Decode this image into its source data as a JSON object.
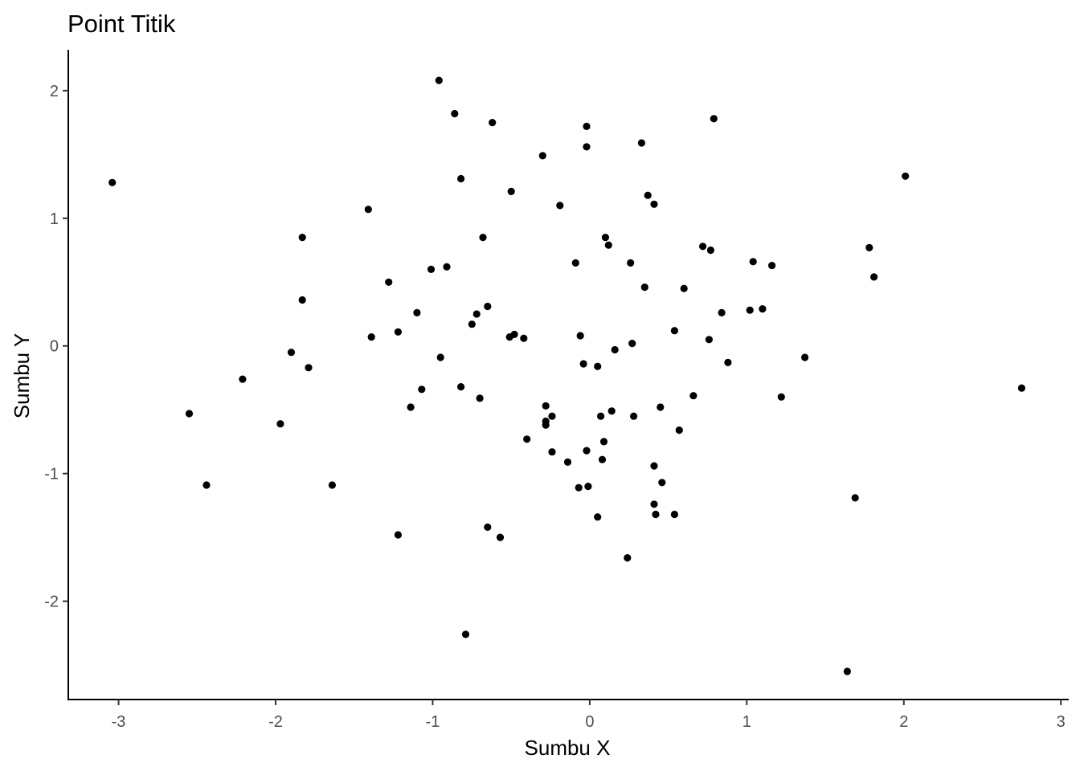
{
  "chart_data": {
    "type": "scatter",
    "title": "Point Titik",
    "xlabel": "Sumbu X",
    "ylabel": "Sumbu Y",
    "xlim": [
      -3.32,
      3.05
    ],
    "ylim": [
      -2.77,
      2.32
    ],
    "x_ticks": [
      -3,
      -2,
      -1,
      0,
      1,
      2,
      3
    ],
    "y_ticks": [
      -2,
      -1,
      0,
      1,
      2
    ],
    "x_tick_labels": [
      "-3",
      "-2",
      "-1",
      "0",
      "1",
      "2",
      "3"
    ],
    "y_tick_labels": [
      "-2",
      "-1",
      "0",
      "1",
      "2"
    ],
    "grid": false,
    "legend": "none",
    "point_color": "#000000",
    "points": [
      {
        "x": -3.04,
        "y": 1.28
      },
      {
        "x": -2.55,
        "y": -0.53
      },
      {
        "x": -2.44,
        "y": -1.09
      },
      {
        "x": -2.21,
        "y": -0.26
      },
      {
        "x": -1.97,
        "y": -0.61
      },
      {
        "x": -1.9,
        "y": -0.05
      },
      {
        "x": -1.83,
        "y": 0.85
      },
      {
        "x": -1.83,
        "y": 0.36
      },
      {
        "x": -1.79,
        "y": -0.17
      },
      {
        "x": -1.64,
        "y": -1.09
      },
      {
        "x": -1.41,
        "y": 1.07
      },
      {
        "x": -1.39,
        "y": 0.07
      },
      {
        "x": -1.28,
        "y": 0.5
      },
      {
        "x": -1.22,
        "y": 0.11
      },
      {
        "x": -1.22,
        "y": -1.48
      },
      {
        "x": -1.14,
        "y": -0.48
      },
      {
        "x": -1.1,
        "y": 0.26
      },
      {
        "x": -1.07,
        "y": -0.34
      },
      {
        "x": -1.01,
        "y": 0.6
      },
      {
        "x": -0.96,
        "y": 2.08
      },
      {
        "x": -0.95,
        "y": -0.09
      },
      {
        "x": -0.91,
        "y": 0.62
      },
      {
        "x": -0.86,
        "y": 1.82
      },
      {
        "x": -0.82,
        "y": 1.31
      },
      {
        "x": -0.82,
        "y": -0.32
      },
      {
        "x": -0.79,
        "y": -2.26
      },
      {
        "x": -0.75,
        "y": 0.17
      },
      {
        "x": -0.72,
        "y": 0.25
      },
      {
        "x": -0.7,
        "y": -0.41
      },
      {
        "x": -0.68,
        "y": 0.85
      },
      {
        "x": -0.65,
        "y": 0.31
      },
      {
        "x": -0.65,
        "y": -1.42
      },
      {
        "x": -0.62,
        "y": 1.75
      },
      {
        "x": -0.57,
        "y": -1.5
      },
      {
        "x": -0.51,
        "y": 0.07
      },
      {
        "x": -0.5,
        "y": 1.21
      },
      {
        "x": -0.48,
        "y": 0.09
      },
      {
        "x": -0.42,
        "y": 0.06
      },
      {
        "x": -0.4,
        "y": -0.73
      },
      {
        "x": -0.3,
        "y": 1.49
      },
      {
        "x": -0.28,
        "y": -0.47
      },
      {
        "x": -0.28,
        "y": -0.59
      },
      {
        "x": -0.28,
        "y": -0.62
      },
      {
        "x": -0.24,
        "y": -0.55
      },
      {
        "x": -0.24,
        "y": -0.83
      },
      {
        "x": -0.19,
        "y": 1.1
      },
      {
        "x": -0.14,
        "y": -0.91
      },
      {
        "x": -0.09,
        "y": 0.65
      },
      {
        "x": -0.07,
        "y": -1.11
      },
      {
        "x": -0.06,
        "y": 0.08
      },
      {
        "x": -0.04,
        "y": -0.14
      },
      {
        "x": -0.02,
        "y": 1.72
      },
      {
        "x": -0.02,
        "y": 1.56
      },
      {
        "x": -0.02,
        "y": -0.82
      },
      {
        "x": -0.01,
        "y": -1.1
      },
      {
        "x": 0.05,
        "y": -0.16
      },
      {
        "x": 0.05,
        "y": -1.34
      },
      {
        "x": 0.07,
        "y": -0.55
      },
      {
        "x": 0.08,
        "y": -0.89
      },
      {
        "x": 0.09,
        "y": -0.75
      },
      {
        "x": 0.1,
        "y": 0.85
      },
      {
        "x": 0.12,
        "y": 0.79
      },
      {
        "x": 0.14,
        "y": -0.51
      },
      {
        "x": 0.16,
        "y": -0.03
      },
      {
        "x": 0.24,
        "y": -1.66
      },
      {
        "x": 0.26,
        "y": 0.65
      },
      {
        "x": 0.27,
        "y": 0.02
      },
      {
        "x": 0.28,
        "y": -0.55
      },
      {
        "x": 0.33,
        "y": 1.59
      },
      {
        "x": 0.35,
        "y": 0.46
      },
      {
        "x": 0.37,
        "y": 1.18
      },
      {
        "x": 0.41,
        "y": 1.11
      },
      {
        "x": 0.41,
        "y": -0.94
      },
      {
        "x": 0.41,
        "y": -1.24
      },
      {
        "x": 0.42,
        "y": -1.32
      },
      {
        "x": 0.45,
        "y": -0.48
      },
      {
        "x": 0.46,
        "y": -1.07
      },
      {
        "x": 0.54,
        "y": 0.12
      },
      {
        "x": 0.54,
        "y": -1.32
      },
      {
        "x": 0.57,
        "y": -0.66
      },
      {
        "x": 0.6,
        "y": 0.45
      },
      {
        "x": 0.66,
        "y": -0.39
      },
      {
        "x": 0.72,
        "y": 0.78
      },
      {
        "x": 0.76,
        "y": 0.05
      },
      {
        "x": 0.77,
        "y": 0.75
      },
      {
        "x": 0.79,
        "y": 1.78
      },
      {
        "x": 0.84,
        "y": 0.26
      },
      {
        "x": 0.88,
        "y": -0.13
      },
      {
        "x": 1.02,
        "y": 0.28
      },
      {
        "x": 1.04,
        "y": 0.66
      },
      {
        "x": 1.1,
        "y": 0.29
      },
      {
        "x": 1.16,
        "y": 0.63
      },
      {
        "x": 1.22,
        "y": -0.4
      },
      {
        "x": 1.37,
        "y": -0.09
      },
      {
        "x": 1.64,
        "y": -2.55
      },
      {
        "x": 1.69,
        "y": -1.19
      },
      {
        "x": 1.78,
        "y": 0.77
      },
      {
        "x": 1.81,
        "y": 0.54
      },
      {
        "x": 2.01,
        "y": 1.33
      },
      {
        "x": 2.75,
        "y": -0.33
      }
    ]
  }
}
